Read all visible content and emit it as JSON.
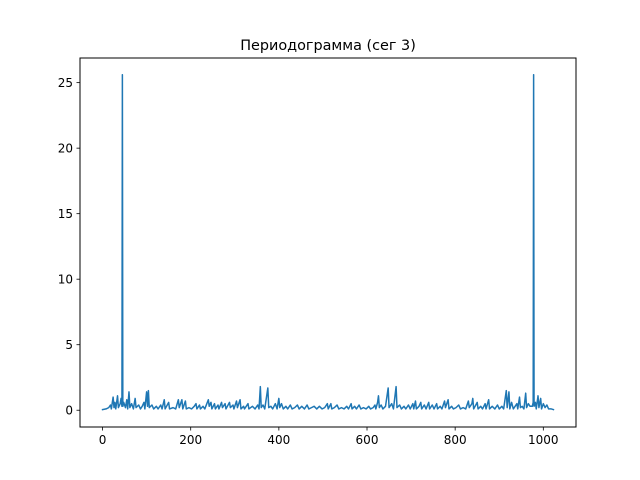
{
  "chart_data": {
    "type": "line",
    "title": "Периодограмма (сег 3)",
    "xlabel": "",
    "ylabel": "",
    "xlim": [
      -51.15,
      1074.15
    ],
    "ylim": [
      -1.28,
      26.88
    ],
    "x_ticks": [
      0,
      200,
      400,
      600,
      800,
      1000
    ],
    "x_tick_labels": [
      "0",
      "200",
      "400",
      "600",
      "800",
      "1000"
    ],
    "y_ticks": [
      0,
      5,
      10,
      15,
      20,
      25
    ],
    "y_tick_labels": [
      "0",
      "5",
      "10",
      "15",
      "20",
      "25"
    ],
    "grid": false,
    "series": [
      {
        "name": "",
        "color": "#1f77b4",
        "points": [
          [
            0,
            0.05
          ],
          [
            8,
            0.1
          ],
          [
            14,
            0.2
          ],
          [
            18,
            0.4
          ],
          [
            20,
            0.1
          ],
          [
            24,
            1.0
          ],
          [
            26,
            0.2
          ],
          [
            28,
            0.6
          ],
          [
            30,
            0.1
          ],
          [
            34,
            1.1
          ],
          [
            36,
            0.2
          ],
          [
            40,
            0.5
          ],
          [
            42,
            0.9
          ],
          [
            44,
            0.3
          ],
          [
            45,
            25.6
          ],
          [
            46,
            0.3
          ],
          [
            48,
            0.6
          ],
          [
            52,
            0.2
          ],
          [
            55,
            0.8
          ],
          [
            57,
            0.1
          ],
          [
            60,
            1.4
          ],
          [
            62,
            0.2
          ],
          [
            66,
            0.5
          ],
          [
            70,
            0.1
          ],
          [
            74,
            0.9
          ],
          [
            76,
            0.2
          ],
          [
            82,
            0.4
          ],
          [
            86,
            0.1
          ],
          [
            90,
            0.3
          ],
          [
            94,
            0.6
          ],
          [
            96,
            0.1
          ],
          [
            100,
            1.4
          ],
          [
            102,
            0.3
          ],
          [
            104,
            1.5
          ],
          [
            106,
            0.2
          ],
          [
            112,
            0.4
          ],
          [
            116,
            0.1
          ],
          [
            122,
            0.3
          ],
          [
            126,
            0.1
          ],
          [
            132,
            0.4
          ],
          [
            135,
            0.1
          ],
          [
            140,
            0.8
          ],
          [
            142,
            0.1
          ],
          [
            150,
            0.6
          ],
          [
            152,
            0.1
          ],
          [
            160,
            0.2
          ],
          [
            166,
            0.1
          ],
          [
            172,
            0.8
          ],
          [
            174,
            0.2
          ],
          [
            178,
            0.6
          ],
          [
            180,
            0.8
          ],
          [
            182,
            0.1
          ],
          [
            188,
            0.7
          ],
          [
            190,
            0.1
          ],
          [
            196,
            0.2
          ],
          [
            202,
            0.1
          ],
          [
            208,
            0.3
          ],
          [
            212,
            0.5
          ],
          [
            214,
            0.1
          ],
          [
            220,
            0.4
          ],
          [
            222,
            0.1
          ],
          [
            228,
            0.3
          ],
          [
            232,
            0.1
          ],
          [
            240,
            0.8
          ],
          [
            242,
            0.3
          ],
          [
            246,
            0.6
          ],
          [
            248,
            0.1
          ],
          [
            254,
            0.5
          ],
          [
            256,
            0.1
          ],
          [
            262,
            0.4
          ],
          [
            264,
            0.1
          ],
          [
            270,
            0.6
          ],
          [
            272,
            0.2
          ],
          [
            278,
            0.5
          ],
          [
            280,
            0.1
          ],
          [
            288,
            0.6
          ],
          [
            290,
            0.2
          ],
          [
            296,
            0.4
          ],
          [
            298,
            0.1
          ],
          [
            304,
            0.7
          ],
          [
            306,
            0.2
          ],
          [
            312,
            0.8
          ],
          [
            314,
            0.1
          ],
          [
            320,
            0.3
          ],
          [
            322,
            0.1
          ],
          [
            330,
            0.5
          ],
          [
            332,
            0.1
          ],
          [
            340,
            0.3
          ],
          [
            346,
            0.1
          ],
          [
            352,
            0.4
          ],
          [
            355,
            0.1
          ],
          [
            358,
            1.8
          ],
          [
            360,
            0.2
          ],
          [
            364,
            0.4
          ],
          [
            368,
            0.1
          ],
          [
            375,
            1.7
          ],
          [
            377,
            0.2
          ],
          [
            382,
            0.3
          ],
          [
            386,
            0.1
          ],
          [
            392,
            0.5
          ],
          [
            396,
            0.1
          ],
          [
            400,
            0.9
          ],
          [
            402,
            0.2
          ],
          [
            406,
            0.5
          ],
          [
            410,
            0.1
          ],
          [
            416,
            0.3
          ],
          [
            420,
            0.1
          ],
          [
            426,
            0.4
          ],
          [
            430,
            0.1
          ],
          [
            436,
            0.2
          ],
          [
            442,
            0.4
          ],
          [
            446,
            0.1
          ],
          [
            452,
            0.3
          ],
          [
            458,
            0.1
          ],
          [
            464,
            0.4
          ],
          [
            468,
            0.1
          ],
          [
            474,
            0.2
          ],
          [
            480,
            0.3
          ],
          [
            486,
            0.1
          ],
          [
            492,
            0.3
          ],
          [
            498,
            0.1
          ],
          [
            504,
            0.2
          ],
          [
            510,
            0.5
          ],
          [
            512,
            0.1
          ],
          [
            518,
            0.5
          ],
          [
            520,
            0.1
          ],
          [
            526,
            0.2
          ],
          [
            532,
            0.4
          ],
          [
            536,
            0.1
          ],
          [
            542,
            0.2
          ],
          [
            548,
            0.1
          ],
          [
            554,
            0.3
          ],
          [
            558,
            0.1
          ],
          [
            564,
            0.5
          ],
          [
            566,
            0.1
          ],
          [
            572,
            0.3
          ],
          [
            576,
            0.1
          ],
          [
            582,
            0.4
          ],
          [
            586,
            0.1
          ],
          [
            592,
            0.2
          ],
          [
            598,
            0.1
          ],
          [
            604,
            0.3
          ],
          [
            608,
            0.1
          ],
          [
            614,
            0.2
          ],
          [
            618,
            0.4
          ],
          [
            620,
            0.1
          ],
          [
            624,
            0.6
          ],
          [
            626,
            1.1
          ],
          [
            628,
            0.2
          ],
          [
            632,
            0.4
          ],
          [
            636,
            0.1
          ],
          [
            642,
            0.3
          ],
          [
            648,
            1.7
          ],
          [
            650,
            0.2
          ],
          [
            656,
            0.5
          ],
          [
            660,
            0.1
          ],
          [
            666,
            1.8
          ],
          [
            668,
            0.2
          ],
          [
            674,
            0.4
          ],
          [
            678,
            0.1
          ],
          [
            684,
            0.3
          ],
          [
            688,
            0.1
          ],
          [
            694,
            0.4
          ],
          [
            698,
            0.1
          ],
          [
            704,
            0.5
          ],
          [
            706,
            0.1
          ],
          [
            710,
            0.7
          ],
          [
            712,
            0.1
          ],
          [
            718,
            0.3
          ],
          [
            722,
            0.6
          ],
          [
            724,
            0.1
          ],
          [
            730,
            0.4
          ],
          [
            734,
            0.1
          ],
          [
            740,
            0.6
          ],
          [
            742,
            0.1
          ],
          [
            748,
            0.4
          ],
          [
            752,
            0.1
          ],
          [
            758,
            0.5
          ],
          [
            760,
            0.1
          ],
          [
            766,
            0.3
          ],
          [
            770,
            0.1
          ],
          [
            776,
            0.7
          ],
          [
            778,
            0.2
          ],
          [
            784,
            0.8
          ],
          [
            786,
            0.1
          ],
          [
            792,
            0.3
          ],
          [
            796,
            0.1
          ],
          [
            802,
            0.2
          ],
          [
            808,
            0.4
          ],
          [
            812,
            0.1
          ],
          [
            818,
            0.2
          ],
          [
            824,
            0.1
          ],
          [
            830,
            0.7
          ],
          [
            832,
            0.2
          ],
          [
            838,
            0.5
          ],
          [
            840,
            0.9
          ],
          [
            842,
            0.1
          ],
          [
            850,
            0.6
          ],
          [
            852,
            0.1
          ],
          [
            858,
            0.3
          ],
          [
            862,
            0.1
          ],
          [
            868,
            0.5
          ],
          [
            870,
            0.1
          ],
          [
            876,
            0.8
          ],
          [
            878,
            0.1
          ],
          [
            884,
            0.3
          ],
          [
            890,
            0.1
          ],
          [
            896,
            0.4
          ],
          [
            900,
            0.1
          ],
          [
            906,
            0.3
          ],
          [
            910,
            0.1
          ],
          [
            916,
            1.5
          ],
          [
            918,
            0.2
          ],
          [
            922,
            1.4
          ],
          [
            924,
            0.1
          ],
          [
            928,
            0.6
          ],
          [
            932,
            0.1
          ],
          [
            936,
            0.3
          ],
          [
            940,
            0.5
          ],
          [
            942,
            0.1
          ],
          [
            946,
            1.0
          ],
          [
            948,
            0.2
          ],
          [
            952,
            0.3
          ],
          [
            956,
            0.1
          ],
          [
            960,
            1.3
          ],
          [
            962,
            0.2
          ],
          [
            966,
            0.5
          ],
          [
            970,
            0.3
          ],
          [
            975,
            0.3
          ],
          [
            977,
            0.6
          ],
          [
            978,
            25.6
          ],
          [
            979,
            0.3
          ],
          [
            982,
            0.6
          ],
          [
            984,
            0.1
          ],
          [
            988,
            1.1
          ],
          [
            990,
            0.2
          ],
          [
            994,
            0.9
          ],
          [
            996,
            0.1
          ],
          [
            1000,
            0.5
          ],
          [
            1004,
            0.2
          ],
          [
            1008,
            0.4
          ],
          [
            1012,
            0.1
          ],
          [
            1018,
            0.1
          ],
          [
            1023,
            0.05
          ]
        ]
      }
    ]
  }
}
